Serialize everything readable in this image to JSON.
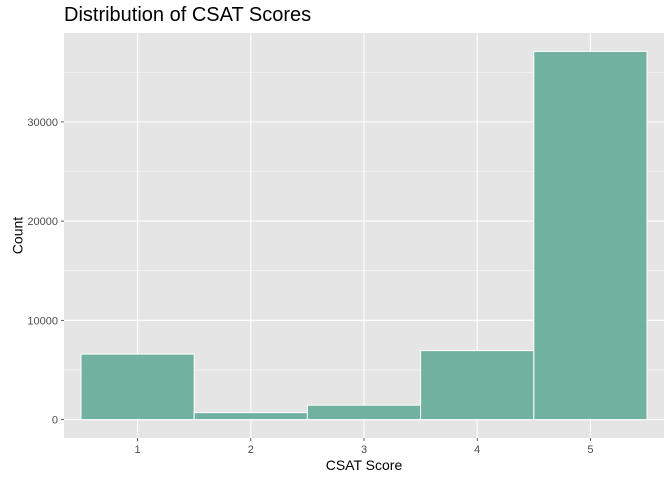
{
  "chart_data": {
    "type": "bar",
    "title": "Distribution of CSAT Scores",
    "xlabel": "CSAT Score",
    "ylabel": "Count",
    "categories": [
      "1",
      "2",
      "3",
      "4",
      "5"
    ],
    "values": [
      6600,
      700,
      1450,
      6950,
      37100
    ],
    "y_ticks": [
      0,
      10000,
      20000,
      30000
    ],
    "y_tick_labels": [
      "0",
      "10000",
      "20000",
      "30000"
    ],
    "ylim": [
      -1855,
      38955
    ],
    "xlim": [
      0.35,
      5.65
    ],
    "grid": true,
    "legend": "none",
    "colors": {
      "bar_fill": "#69AF9B",
      "bar_outline": "#ffffff",
      "panel_background": "#E5E5E5",
      "grid_major": "#ffffff",
      "tick_label": "#4d4d4d"
    }
  }
}
